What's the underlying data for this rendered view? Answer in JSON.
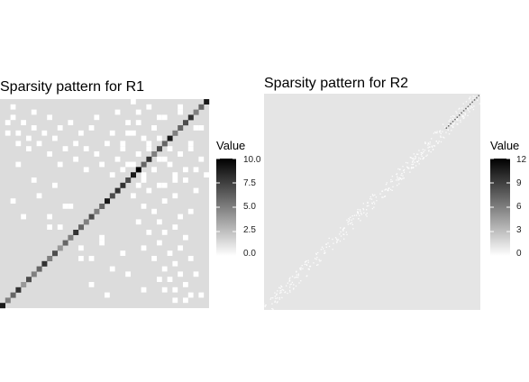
{
  "chart_data": [
    {
      "type": "heatmap",
      "title": "Sparsity pattern for R1",
      "xlabel": "",
      "ylabel": "",
      "matrix_size": 40,
      "value_range": [
        0,
        10
      ],
      "legend": {
        "title": "Value",
        "ticks": [
          "10.0",
          "7.5",
          "5.0",
          "2.5",
          "0.0"
        ],
        "tick_values": [
          10,
          7.5,
          5,
          2.5,
          0
        ],
        "placement": "right"
      },
      "background_value_color": "#dcdcdc",
      "zero_color": "#ffffff",
      "diagonal_values": [
        9,
        5,
        6,
        8,
        4,
        7,
        5,
        6,
        8,
        5,
        7,
        4,
        6,
        5,
        8,
        6,
        5,
        7,
        5,
        6,
        9,
        7,
        8,
        8,
        7,
        9,
        10,
        6,
        8,
        5,
        7,
        6,
        9,
        5,
        6,
        7,
        8,
        5,
        6,
        9
      ],
      "off_diagonal_zero_cells": [
        [
          1,
          33
        ],
        [
          1,
          35
        ],
        [
          2,
          36
        ],
        [
          2,
          38
        ],
        [
          3,
          31
        ],
        [
          3,
          33
        ],
        [
          4,
          35
        ],
        [
          5,
          30
        ],
        [
          5,
          32
        ],
        [
          6,
          34
        ],
        [
          6,
          37
        ],
        [
          7,
          31
        ],
        [
          8,
          33
        ],
        [
          9,
          29
        ],
        [
          9,
          36
        ],
        [
          10,
          32
        ],
        [
          11,
          27
        ],
        [
          11,
          34
        ],
        [
          12,
          30
        ],
        [
          13,
          35
        ],
        [
          14,
          28
        ],
        [
          14,
          31
        ],
        [
          15,
          33
        ],
        [
          16,
          26
        ],
        [
          16,
          30
        ],
        [
          17,
          34
        ],
        [
          18,
          29
        ],
        [
          18,
          36
        ],
        [
          19,
          27
        ],
        [
          20,
          31
        ],
        [
          21,
          25
        ],
        [
          21,
          33
        ],
        [
          22,
          28
        ],
        [
          22,
          37
        ],
        [
          23,
          26
        ],
        [
          23,
          30
        ],
        [
          24,
          33
        ],
        [
          25,
          27
        ],
        [
          26,
          29
        ],
        [
          26,
          35
        ],
        [
          27,
          24
        ],
        [
          28,
          31
        ],
        [
          29,
          26
        ],
        [
          29,
          34
        ],
        [
          30,
          28
        ],
        [
          31,
          23
        ],
        [
          31,
          36
        ],
        [
          32,
          27
        ],
        [
          32,
          30
        ],
        [
          33,
          25
        ],
        [
          34,
          29
        ],
        [
          34,
          37
        ],
        [
          35,
          24
        ],
        [
          36,
          30
        ],
        [
          37,
          26
        ],
        [
          38,
          28
        ],
        [
          38,
          34
        ],
        [
          39,
          25
        ],
        [
          33,
          1
        ],
        [
          35,
          1
        ],
        [
          36,
          2
        ],
        [
          38,
          2
        ],
        [
          31,
          3
        ],
        [
          33,
          3
        ],
        [
          35,
          4
        ],
        [
          30,
          5
        ],
        [
          32,
          5
        ],
        [
          34,
          6
        ],
        [
          37,
          6
        ],
        [
          31,
          7
        ],
        [
          33,
          8
        ],
        [
          29,
          9
        ],
        [
          36,
          9
        ],
        [
          32,
          10
        ],
        [
          27,
          11
        ],
        [
          34,
          11
        ],
        [
          30,
          12
        ],
        [
          35,
          13
        ],
        [
          28,
          14
        ],
        [
          31,
          14
        ],
        [
          33,
          15
        ],
        [
          26,
          16
        ],
        [
          30,
          16
        ],
        [
          34,
          17
        ],
        [
          29,
          18
        ],
        [
          36,
          18
        ],
        [
          27,
          19
        ],
        [
          31,
          20
        ],
        [
          25,
          21
        ],
        [
          33,
          21
        ],
        [
          28,
          22
        ],
        [
          37,
          22
        ],
        [
          26,
          23
        ],
        [
          30,
          23
        ],
        [
          33,
          24
        ],
        [
          27,
          25
        ],
        [
          29,
          26
        ],
        [
          35,
          26
        ],
        [
          24,
          27
        ],
        [
          31,
          28
        ],
        [
          26,
          29
        ],
        [
          34,
          29
        ],
        [
          28,
          30
        ],
        [
          23,
          31
        ],
        [
          36,
          31
        ],
        [
          27,
          32
        ],
        [
          30,
          32
        ],
        [
          25,
          33
        ],
        [
          29,
          34
        ],
        [
          37,
          34
        ],
        [
          24,
          35
        ],
        [
          30,
          36
        ],
        [
          26,
          37
        ],
        [
          28,
          38
        ],
        [
          34,
          38
        ],
        [
          25,
          39
        ],
        [
          2,
          20
        ],
        [
          4,
          17
        ],
        [
          7,
          21
        ],
        [
          9,
          15
        ],
        [
          12,
          19
        ],
        [
          15,
          11
        ],
        [
          17,
          9
        ],
        [
          19,
          13
        ],
        [
          20,
          2
        ],
        [
          21,
          7
        ],
        [
          17,
          4
        ],
        [
          15,
          9
        ],
        [
          19,
          12
        ],
        [
          11,
          15
        ],
        [
          9,
          17
        ],
        [
          13,
          19
        ],
        [
          6,
          24
        ],
        [
          24,
          6
        ],
        [
          3,
          27
        ],
        [
          27,
          3
        ],
        [
          10,
          23
        ],
        [
          23,
          10
        ]
      ]
    },
    {
      "type": "heatmap",
      "title": "Sparsity pattern for R2",
      "xlabel": "",
      "ylabel": "",
      "matrix_size": 400,
      "value_range": [
        0,
        12
      ],
      "legend": {
        "title": "Value",
        "ticks": [
          "12",
          "9",
          "6",
          "3",
          "0"
        ],
        "tick_values": [
          12,
          9,
          6,
          3,
          0
        ],
        "placement": "right"
      },
      "background_value_color": "#e5e5e5",
      "zero_color": "#ffffff",
      "pattern": "sparse anti-diagonal band of near-zero entries from bottom-left to top-right"
    }
  ]
}
